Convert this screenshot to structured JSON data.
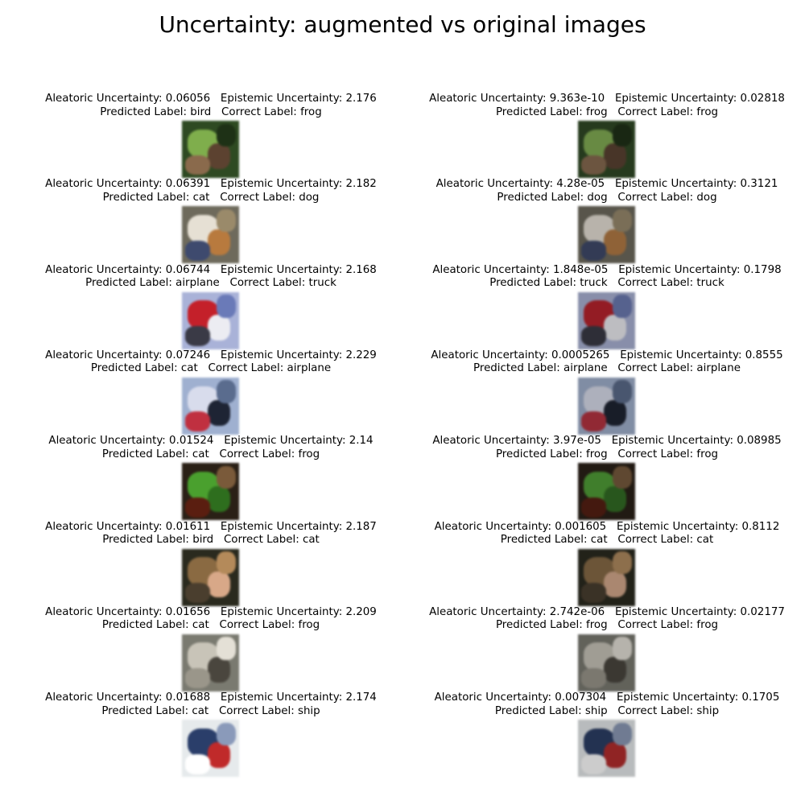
{
  "title": "Uncertainty: augmented vs original images",
  "chart_data": {
    "type": "image_grid",
    "title": "Uncertainty: augmented vs original images",
    "columns": [
      "augmented",
      "original"
    ],
    "rows": [
      {
        "augmented": {
          "aleatoric": "0.06056",
          "epistemic": "2.176",
          "predicted": "bird",
          "correct": "frog",
          "image": "frog-among-green-leaves"
        },
        "original": {
          "aleatoric": "9.363e-10",
          "epistemic": "0.02818",
          "predicted": "frog",
          "correct": "frog",
          "image": "frog-among-green-leaves"
        }
      },
      {
        "augmented": {
          "aleatoric": "0.06391",
          "epistemic": "2.182",
          "predicted": "cat",
          "correct": "dog",
          "image": "white-brown-puppy"
        },
        "original": {
          "aleatoric": "4.28e-05",
          "epistemic": "0.3121",
          "predicted": "dog",
          "correct": "dog",
          "image": "white-brown-puppy"
        }
      },
      {
        "augmented": {
          "aleatoric": "0.06744",
          "epistemic": "2.168",
          "predicted": "airplane",
          "correct": "truck",
          "image": "red-fire-truck"
        },
        "original": {
          "aleatoric": "1.848e-05",
          "epistemic": "0.1798",
          "predicted": "truck",
          "correct": "truck",
          "image": "red-fire-truck"
        }
      },
      {
        "augmented": {
          "aleatoric": "0.07246",
          "epistemic": "2.229",
          "predicted": "cat",
          "correct": "airplane",
          "image": "concorde-airplane-poster"
        },
        "original": {
          "aleatoric": "0.0005265",
          "epistemic": "0.8555",
          "predicted": "airplane",
          "correct": "airplane",
          "image": "concorde-airplane-poster"
        }
      },
      {
        "augmented": {
          "aleatoric": "0.01524",
          "epistemic": "2.14",
          "predicted": "cat",
          "correct": "frog",
          "image": "green-tree-frog"
        },
        "original": {
          "aleatoric": "3.97e-05",
          "epistemic": "0.08985",
          "predicted": "frog",
          "correct": "frog",
          "image": "green-tree-frog"
        }
      },
      {
        "augmented": {
          "aleatoric": "0.01611",
          "epistemic": "2.187",
          "predicted": "bird",
          "correct": "cat",
          "image": "brown-cat"
        },
        "original": {
          "aleatoric": "0.001605",
          "epistemic": "0.8112",
          "predicted": "cat",
          "correct": "cat",
          "image": "brown-cat"
        }
      },
      {
        "augmented": {
          "aleatoric": "0.01656",
          "epistemic": "2.209",
          "predicted": "cat",
          "correct": "frog",
          "image": "grey-toad"
        },
        "original": {
          "aleatoric": "2.742e-06",
          "epistemic": "0.02177",
          "predicted": "frog",
          "correct": "frog",
          "image": "grey-toad"
        }
      },
      {
        "augmented": {
          "aleatoric": "0.01688",
          "epistemic": "2.174",
          "predicted": "cat",
          "correct": "ship",
          "image": "white-red-ship"
        },
        "original": {
          "aleatoric": "0.007304",
          "epistemic": "0.1705",
          "predicted": "ship",
          "correct": "ship",
          "image": "white-red-ship"
        }
      }
    ]
  },
  "labels": {
    "aleatoric": "Aleatoric Uncertainty: ",
    "epistemic": "Epistemic Uncertainty: ",
    "predicted": "Predicted Label: ",
    "correct": "Correct Label: ",
    "gap": "   "
  },
  "image_palettes": {
    "frog-among-green-leaves": {
      "base": "#2e4a22",
      "blobs": [
        "#7fae4c",
        "#5c4230",
        "#8a6a4c",
        "#1e3116"
      ]
    },
    "white-brown-puppy": {
      "base": "#6e6a5c",
      "blobs": [
        "#e6e0d4",
        "#b87a3e",
        "#3e4a6e",
        "#9a8a6a"
      ]
    },
    "red-fire-truck": {
      "base": "#a9b2d8",
      "blobs": [
        "#c4202a",
        "#ececf2",
        "#3a3a46",
        "#6a7ab8"
      ]
    },
    "concorde-airplane-poster": {
      "base": "#9fb0d0",
      "blobs": [
        "#d8dcec",
        "#1e2434",
        "#c03040",
        "#5a6c8e"
      ]
    },
    "green-tree-frog": {
      "base": "#2a2016",
      "blobs": [
        "#4aa02e",
        "#2e6e1e",
        "#5a1e10",
        "#7a5a3a"
      ]
    },
    "brown-cat": {
      "base": "#2a2a1e",
      "blobs": [
        "#8a6a42",
        "#d8a888",
        "#4a3e2e",
        "#b48a5a"
      ]
    },
    "grey-toad": {
      "base": "#7a7a70",
      "blobs": [
        "#c8c4b8",
        "#4a463e",
        "#9a968a",
        "#e4e0d6"
      ]
    },
    "white-red-ship": {
      "base": "#e6eaec",
      "blobs": [
        "#2a3e6a",
        "#c02a2a",
        "#ffffff",
        "#8a9aba"
      ]
    }
  }
}
